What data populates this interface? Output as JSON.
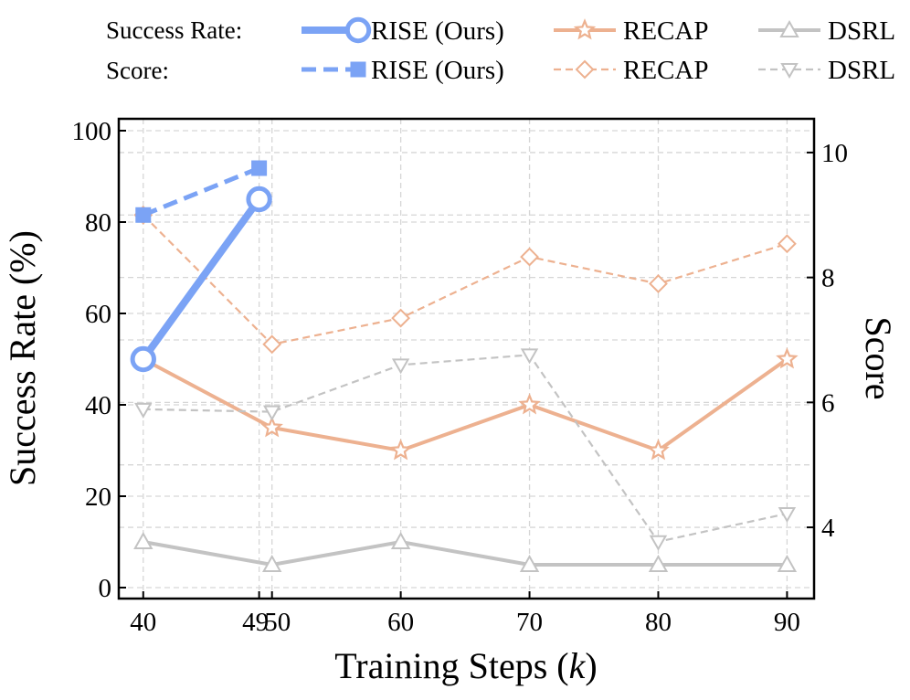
{
  "chart_data": {
    "type": "line",
    "xlabel": "Training Steps (k)",
    "xlabel_parts": {
      "prefix": "Training Steps (",
      "var": "k",
      "suffix": ")"
    },
    "ylabel": "Success Rate (%)",
    "y2label": "Score",
    "xticks": [
      40,
      49,
      50,
      60,
      70,
      80,
      90
    ],
    "yticks": [
      0,
      20,
      40,
      60,
      80,
      100
    ],
    "y2ticks": [
      4,
      6,
      8,
      10
    ],
    "xlim": [
      38.1,
      92.1
    ],
    "ylim": [
      -2.4,
      102.6
    ],
    "y2lim": [
      2.86,
      10.54
    ],
    "grid": true,
    "legend_placement": "top, above plot",
    "legend_rows": [
      "Success Rate:",
      "Score:"
    ],
    "series": [
      {
        "name": "RISE (Ours)",
        "metric": "Success Rate",
        "axis": "left",
        "color": "#7BA3F5",
        "style": "solid",
        "marker": "circle-open",
        "x": [
          40,
          49
        ],
        "y": [
          50,
          85
        ]
      },
      {
        "name": "RECAP",
        "metric": "Success Rate",
        "axis": "left",
        "color": "#EDB190",
        "style": "solid",
        "marker": "star-open",
        "x": [
          40,
          50,
          60,
          70,
          80,
          90
        ],
        "y": [
          50,
          35,
          30,
          40,
          30,
          50
        ]
      },
      {
        "name": "DSRL",
        "metric": "Success Rate",
        "axis": "left",
        "color": "#C3C3C3",
        "style": "solid",
        "marker": "triangle-up-open",
        "x": [
          40,
          50,
          60,
          70,
          80,
          90
        ],
        "y": [
          10,
          5,
          10,
          5,
          5,
          5
        ]
      },
      {
        "name": "RISE (Ours)",
        "metric": "Score",
        "axis": "right",
        "color": "#7BA3F5",
        "style": "dashed",
        "marker": "square-filled",
        "x": [
          40,
          49
        ],
        "y": [
          9.0,
          9.75
        ]
      },
      {
        "name": "RECAP",
        "metric": "Score",
        "axis": "right",
        "color": "#EDB190",
        "style": "dashed",
        "marker": "diamond-open",
        "x": [
          40,
          50,
          60,
          70,
          80,
          90
        ],
        "y": [
          9.0,
          6.93,
          7.35,
          8.33,
          7.9,
          8.54
        ]
      },
      {
        "name": "DSRL",
        "metric": "Score",
        "axis": "right",
        "color": "#C3C3C3",
        "style": "dashed",
        "marker": "triangle-down-open",
        "x": [
          40,
          50,
          60,
          70,
          80,
          90
        ],
        "y": [
          5.89,
          5.85,
          6.6,
          6.76,
          3.77,
          4.22
        ]
      }
    ]
  }
}
